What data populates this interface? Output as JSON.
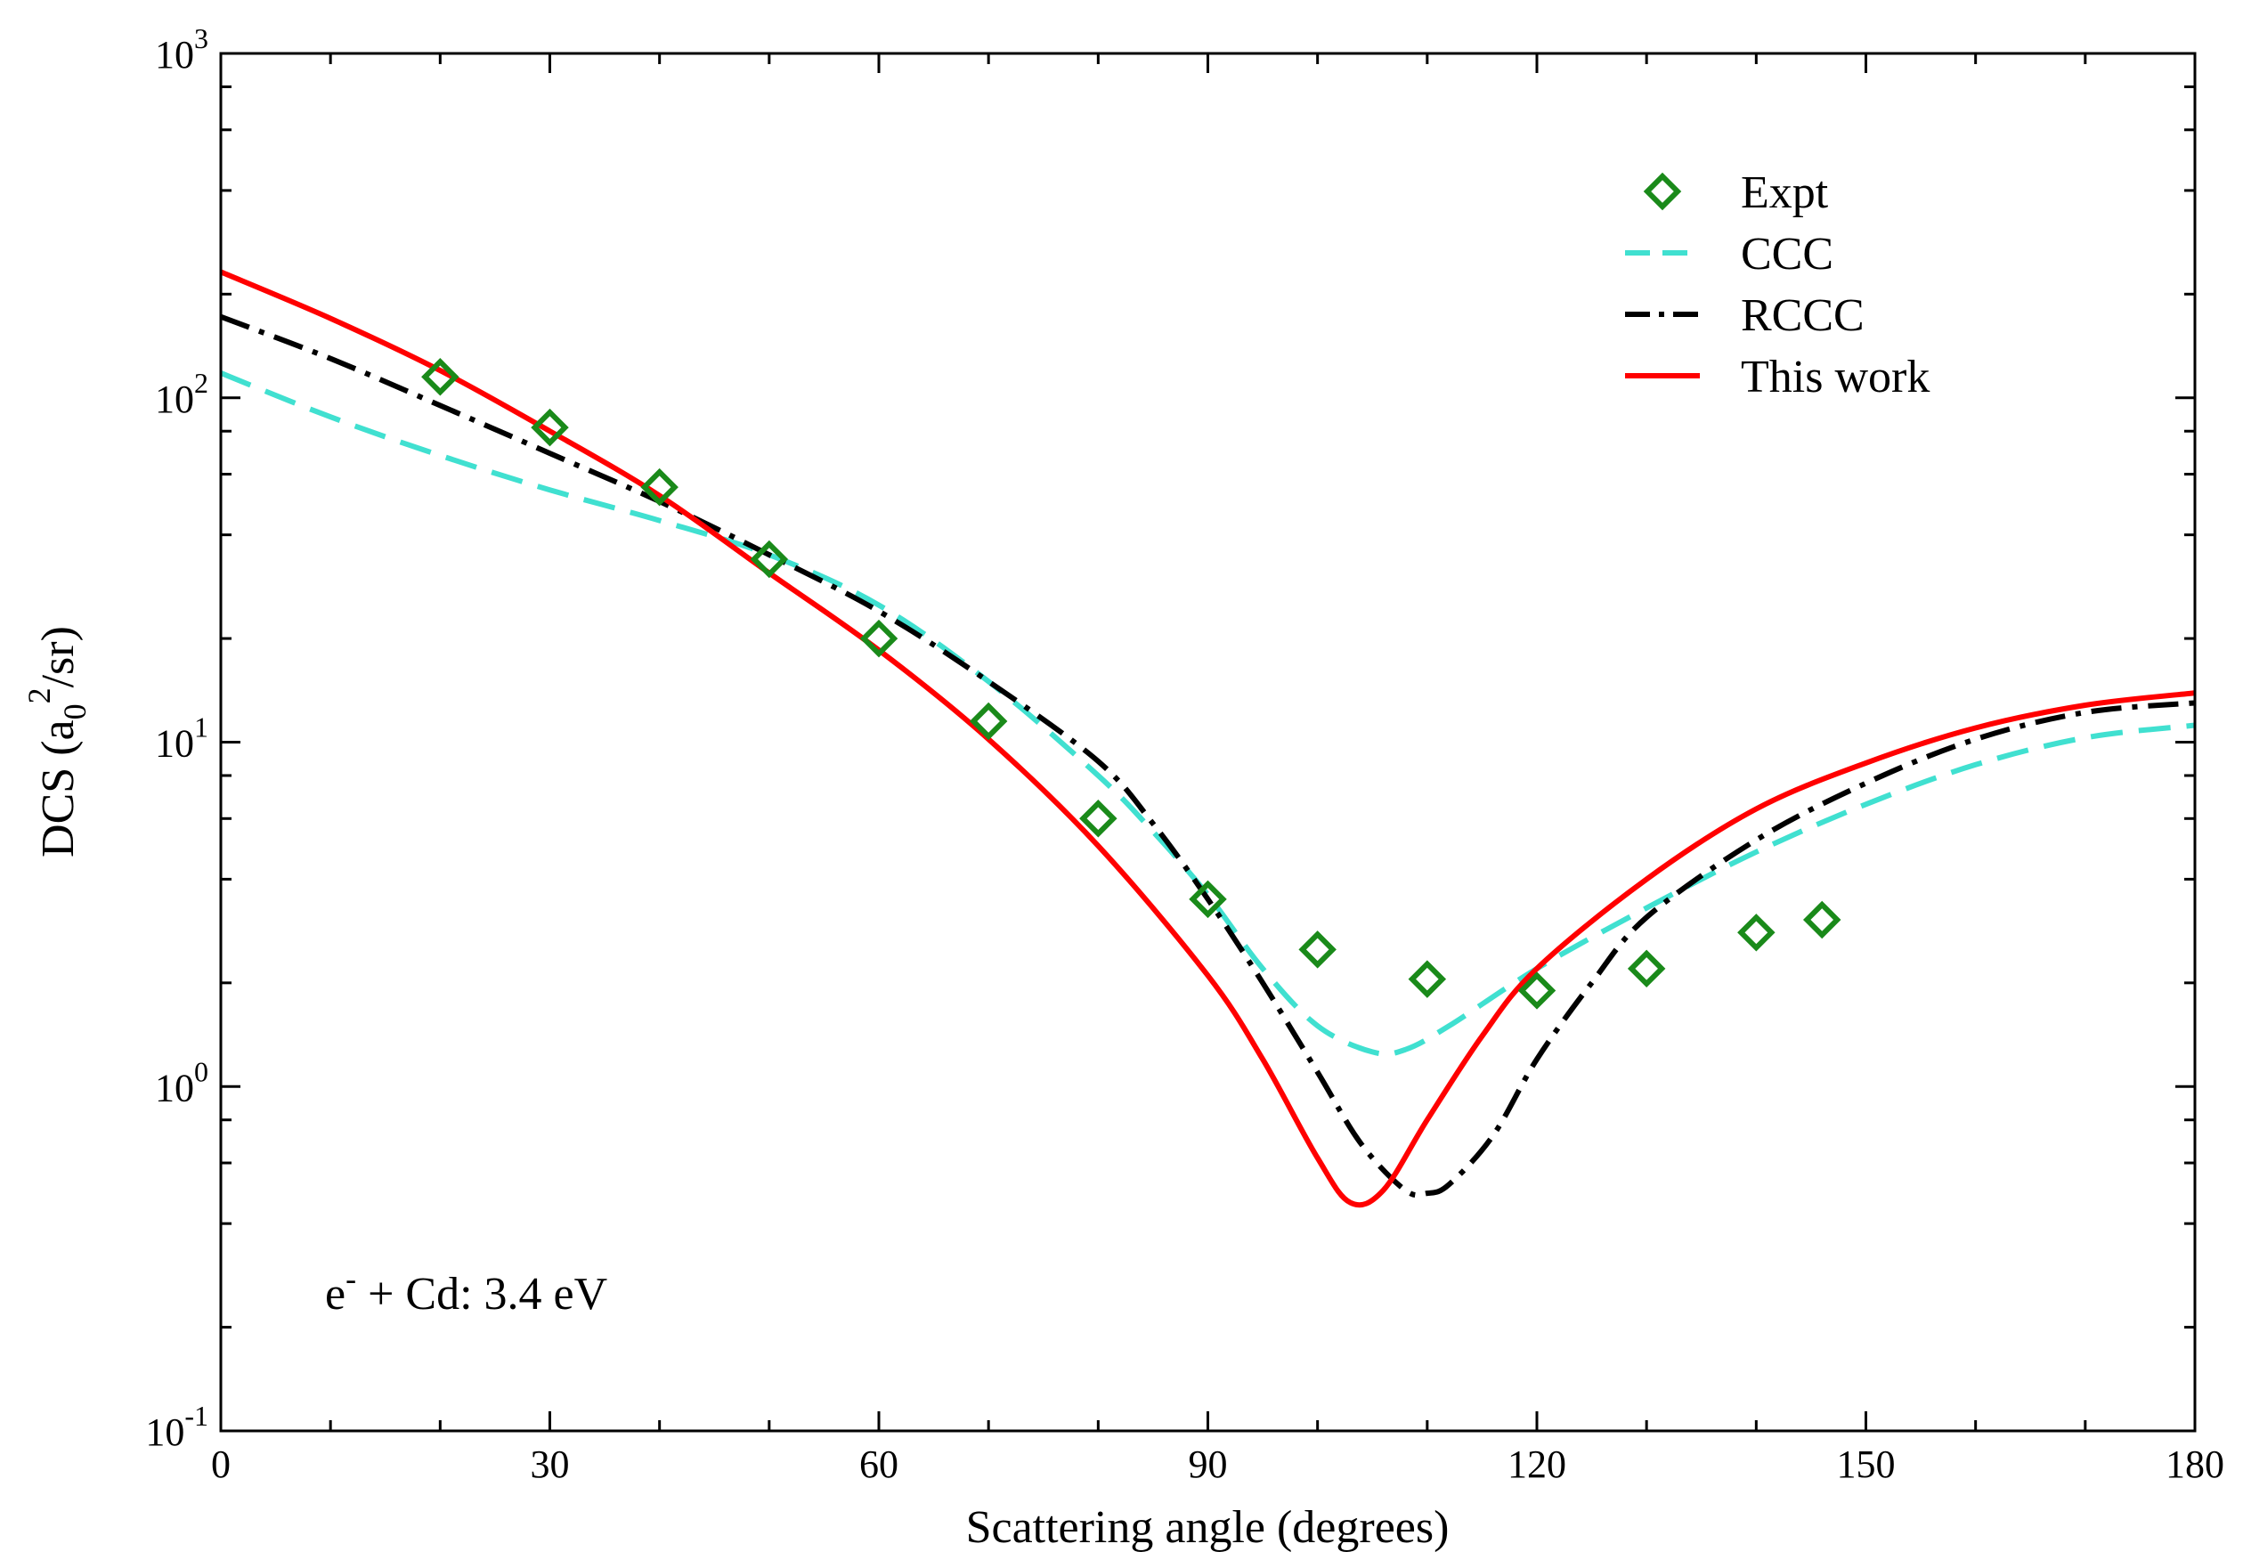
{
  "chart_data": {
    "type": "line",
    "title": "",
    "xlabel": "Scattering angle (degrees)",
    "ylabel": "DCS (a₀²/sr)",
    "ylabel_parts": {
      "prefix": "DCS (a",
      "sub": "0",
      "sup": "2",
      "suffix": "/sr)"
    },
    "xlim": [
      0,
      180
    ],
    "ylim": [
      0.1,
      1000
    ],
    "yscale": "log",
    "xticks": [
      0,
      30,
      60,
      90,
      120,
      150,
      180
    ],
    "xtick_labels": [
      "0",
      "30",
      "60",
      "90",
      "120",
      "150",
      "180"
    ],
    "yticks": [
      0.1,
      1,
      10,
      100,
      1000
    ],
    "ytick_labels": [
      {
        "base": "10",
        "exp": "-1"
      },
      {
        "base": "10",
        "exp": "0"
      },
      {
        "base": "10",
        "exp": "1"
      },
      {
        "base": "10",
        "exp": "2"
      },
      {
        "base": "10",
        "exp": "3"
      }
    ],
    "legend_position": "top-right",
    "annotation": {
      "prefix": "e",
      "sup": "-",
      "suffix": " + Cd: 3.4 eV"
    },
    "series": [
      {
        "name": "Expt",
        "style": "markers",
        "marker": "diamond",
        "color": "#1a8a1a",
        "x": [
          20,
          30,
          40,
          50,
          60,
          70,
          80,
          90,
          100,
          110,
          120,
          130,
          140,
          146
        ],
        "y": [
          115,
          82,
          55,
          34,
          20,
          11.5,
          6,
          3.5,
          2.5,
          2.05,
          1.9,
          2.2,
          2.8,
          3.05
        ]
      },
      {
        "name": "CCC",
        "style": "dashed",
        "color": "#40e0d0",
        "x": [
          0,
          10,
          20,
          30,
          40,
          50,
          60,
          70,
          80,
          85,
          90,
          95,
          100,
          105,
          108,
          112,
          120,
          130,
          140,
          150,
          160,
          170,
          180
        ],
        "y": [
          118,
          88,
          68,
          54,
          44,
          35,
          25,
          15,
          8,
          5.5,
          3.6,
          2.2,
          1.5,
          1.26,
          1.28,
          1.5,
          2.2,
          3.3,
          4.8,
          6.6,
          8.6,
          10.3,
          11.2
        ]
      },
      {
        "name": "RCCC",
        "style": "dash-dot",
        "color": "#000000",
        "x": [
          0,
          10,
          20,
          30,
          40,
          50,
          60,
          70,
          80,
          85,
          90,
          95,
          100,
          104,
          108,
          110,
          112,
          116,
          120,
          125,
          130,
          140,
          150,
          160,
          170,
          180
        ],
        "y": [
          172,
          130,
          95,
          69,
          50,
          35,
          24,
          15,
          8.8,
          5.8,
          3.5,
          2,
          1.1,
          0.68,
          0.5,
          0.49,
          0.52,
          0.72,
          1.2,
          2,
          3.1,
          5.2,
          7.6,
          10.2,
          12.2,
          13
        ]
      },
      {
        "name": "This work",
        "style": "solid",
        "color": "#ff0000",
        "x": [
          0,
          10,
          20,
          30,
          40,
          50,
          60,
          70,
          80,
          90,
          95,
          100,
          103,
          106,
          110,
          115,
          120,
          130,
          140,
          150,
          160,
          170,
          180
        ],
        "y": [
          232,
          170,
          120,
          80,
          52,
          31,
          18.5,
          10.2,
          5,
          2.1,
          1.2,
          0.62,
          0.46,
          0.5,
          0.8,
          1.4,
          2.2,
          4,
          6.4,
          8.7,
          11,
          12.8,
          13.9
        ]
      }
    ]
  }
}
